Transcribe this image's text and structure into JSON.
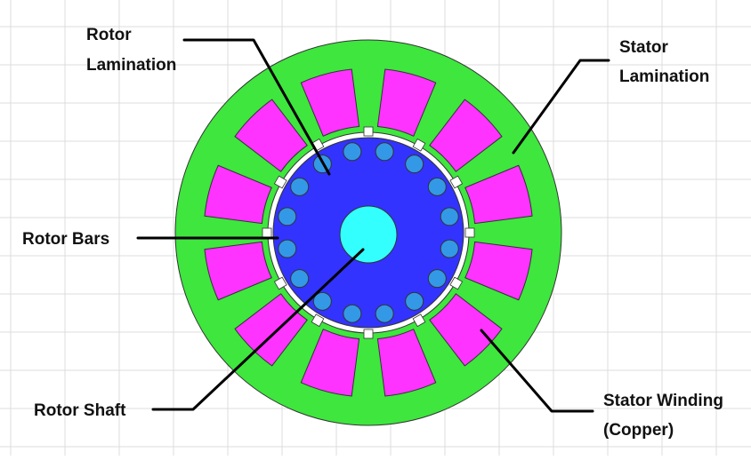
{
  "labels": {
    "rotor_lamination": [
      "Rotor",
      "Lamination"
    ],
    "stator_lamination": [
      "Stator",
      "Lamination"
    ],
    "rotor_bars": "Rotor Bars",
    "rotor_shaft": "Rotor Shaft",
    "stator_winding": [
      "Stator Winding",
      "(Copper)"
    ]
  },
  "colors": {
    "stator_lamination": "#3ee63e",
    "stator_winding": "#ff33ff",
    "rotor_lamination": "#3333ff",
    "rotor_bar": "#3399e6",
    "rotor_shaft": "#33ffff",
    "grid": "#dcdcdc",
    "leader": "#000000"
  },
  "counts": {
    "stator_slots": 12,
    "rotor_bars": 16
  }
}
